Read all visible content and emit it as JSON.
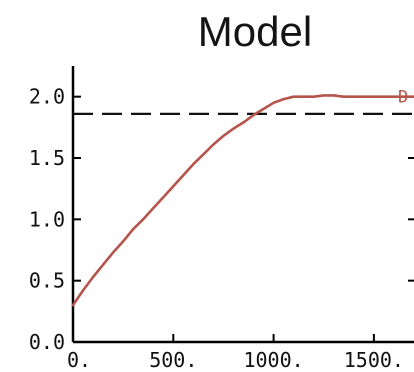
{
  "chart_data": {
    "type": "line",
    "title": "Model",
    "xlabel": "",
    "ylabel": "",
    "xlim": [
      0,
      1700
    ],
    "ylim": [
      0.0,
      2.25
    ],
    "x_ticks": [
      0,
      500,
      1000,
      1500
    ],
    "x_tick_labels": [
      "0.",
      "500.",
      "1000.",
      "1500."
    ],
    "y_ticks": [
      0.0,
      0.5,
      1.0,
      1.5,
      2.0
    ],
    "y_tick_labels": [
      "0.0",
      "0.5",
      "1.0",
      "1.5",
      "2.0"
    ],
    "grid": false,
    "series": [
      {
        "color": "#b5544a",
        "x": [
          0,
          50,
          100,
          150,
          200,
          250,
          300,
          350,
          400,
          450,
          500,
          550,
          600,
          650,
          700,
          750,
          800,
          850,
          900,
          950,
          1000,
          1050,
          1100,
          1150,
          1200,
          1250,
          1300,
          1350,
          1400,
          1450,
          1500,
          1550,
          1600,
          1650,
          1700
        ],
        "y": [
          0.3,
          0.42,
          0.53,
          0.63,
          0.73,
          0.82,
          0.92,
          1.0,
          1.09,
          1.18,
          1.27,
          1.36,
          1.45,
          1.53,
          1.61,
          1.68,
          1.74,
          1.79,
          1.85,
          1.9,
          1.95,
          1.98,
          2.0,
          2.0,
          2.0,
          2.01,
          2.01,
          2.0,
          2.0,
          2.0,
          2.0,
          2.0,
          2.0,
          2.0,
          2.0
        ]
      }
    ],
    "reference_lines": [
      {
        "orientation": "horizontal",
        "y": 1.86,
        "style": "dashed",
        "color": "#111111"
      }
    ],
    "annotations": [
      {
        "text": "D",
        "x": 1700,
        "y": 2.0,
        "color": "#b5544a"
      }
    ]
  }
}
